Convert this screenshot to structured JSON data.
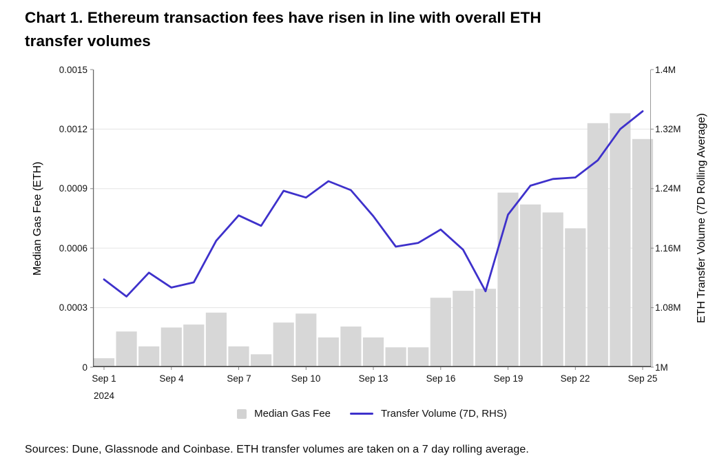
{
  "title_lines": [
    "Chart 1. Ethereum transaction fees have risen in line with overall ETH",
    "transfer volumes"
  ],
  "footer_text": "Sources: Dune, Glassnode and Coinbase. ETH transfer volumes are taken on a 7 day rolling average.",
  "legend": {
    "bar_label": "Median Gas Fee",
    "line_label": "Transfer Volume (7D, RHS)"
  },
  "colors": {
    "bar": "#d7d7d7",
    "legend_bar_swatch": "#d2d2d2",
    "line": "#3e31cb",
    "grid": "#e7e7e7",
    "axis_left": "#666666",
    "axis_right": "#999999",
    "axis_bottom": "#4d4d4d",
    "tick": "#888888"
  },
  "chart_data": {
    "type": "bar+line combo",
    "title": "Chart 1. Ethereum transaction fees have risen in line with overall ETH transfer volumes",
    "categories": [
      "Sep 1",
      "Sep 2",
      "Sep 3",
      "Sep 4",
      "Sep 5",
      "Sep 6",
      "Sep 7",
      "Sep 8",
      "Sep 9",
      "Sep 10",
      "Sep 11",
      "Sep 12",
      "Sep 13",
      "Sep 14",
      "Sep 15",
      "Sep 16",
      "Sep 17",
      "Sep 18",
      "Sep 19",
      "Sep 20",
      "Sep 21",
      "Sep 22",
      "Sep 23",
      "Sep 24",
      "Sep 25"
    ],
    "series": [
      {
        "name": "Median Gas Fee",
        "type": "bar",
        "axis": "left",
        "values": [
          4.5e-05,
          0.00018,
          0.000105,
          0.0002,
          0.000215,
          0.000275,
          0.000105,
          6.5e-05,
          0.000225,
          0.00027,
          0.00015,
          0.000205,
          0.00015,
          0.0001,
          0.0001,
          0.00035,
          0.000385,
          0.000395,
          0.00088,
          0.00082,
          0.00078,
          0.0007,
          0.00123,
          0.00128,
          0.00115
        ]
      },
      {
        "name": "Transfer Volume (7D, RHS)",
        "type": "line",
        "axis": "right",
        "values": [
          1118000,
          1095000,
          1127000,
          1107000,
          1114000,
          1170000,
          1204000,
          1190000,
          1237000,
          1228000,
          1250000,
          1238000,
          1203000,
          1162000,
          1167000,
          1185000,
          1158000,
          1102000,
          1205000,
          1244000,
          1253000,
          1255000,
          1278000,
          1320000,
          1344000
        ]
      }
    ],
    "left_axis": {
      "label": "Median Gas Fee (ETH)",
      "min": 0,
      "max": 0.0015,
      "tick_values": [
        0,
        0.0003,
        0.0006,
        0.0009,
        0.0012,
        0.0015
      ],
      "tick_labels": [
        "0",
        "0.0003",
        "0.0006",
        "0.0009",
        "0.0012",
        "0.0015"
      ]
    },
    "right_axis": {
      "label": "ETH Transfer Volume (7D Rolling Average)",
      "min": 1000000,
      "max": 1400000,
      "tick_values": [
        1000000,
        1080000,
        1160000,
        1240000,
        1320000,
        1400000
      ],
      "tick_labels": [
        "1M",
        "1.08M",
        "1.16M",
        "1.24M",
        "1.32M",
        "1.4M"
      ]
    },
    "x_axis": {
      "ticks": [
        {
          "index": 0,
          "label": "Sep 1",
          "sublabel": "2024"
        },
        {
          "index": 3,
          "label": "Sep 4"
        },
        {
          "index": 6,
          "label": "Sep 7"
        },
        {
          "index": 9,
          "label": "Sep 10"
        },
        {
          "index": 12,
          "label": "Sep 13"
        },
        {
          "index": 15,
          "label": "Sep 16"
        },
        {
          "index": 18,
          "label": "Sep 19"
        },
        {
          "index": 21,
          "label": "Sep 22"
        },
        {
          "index": 24,
          "label": "Sep 25"
        }
      ]
    },
    "grid": true,
    "legend_position": "bottom"
  }
}
